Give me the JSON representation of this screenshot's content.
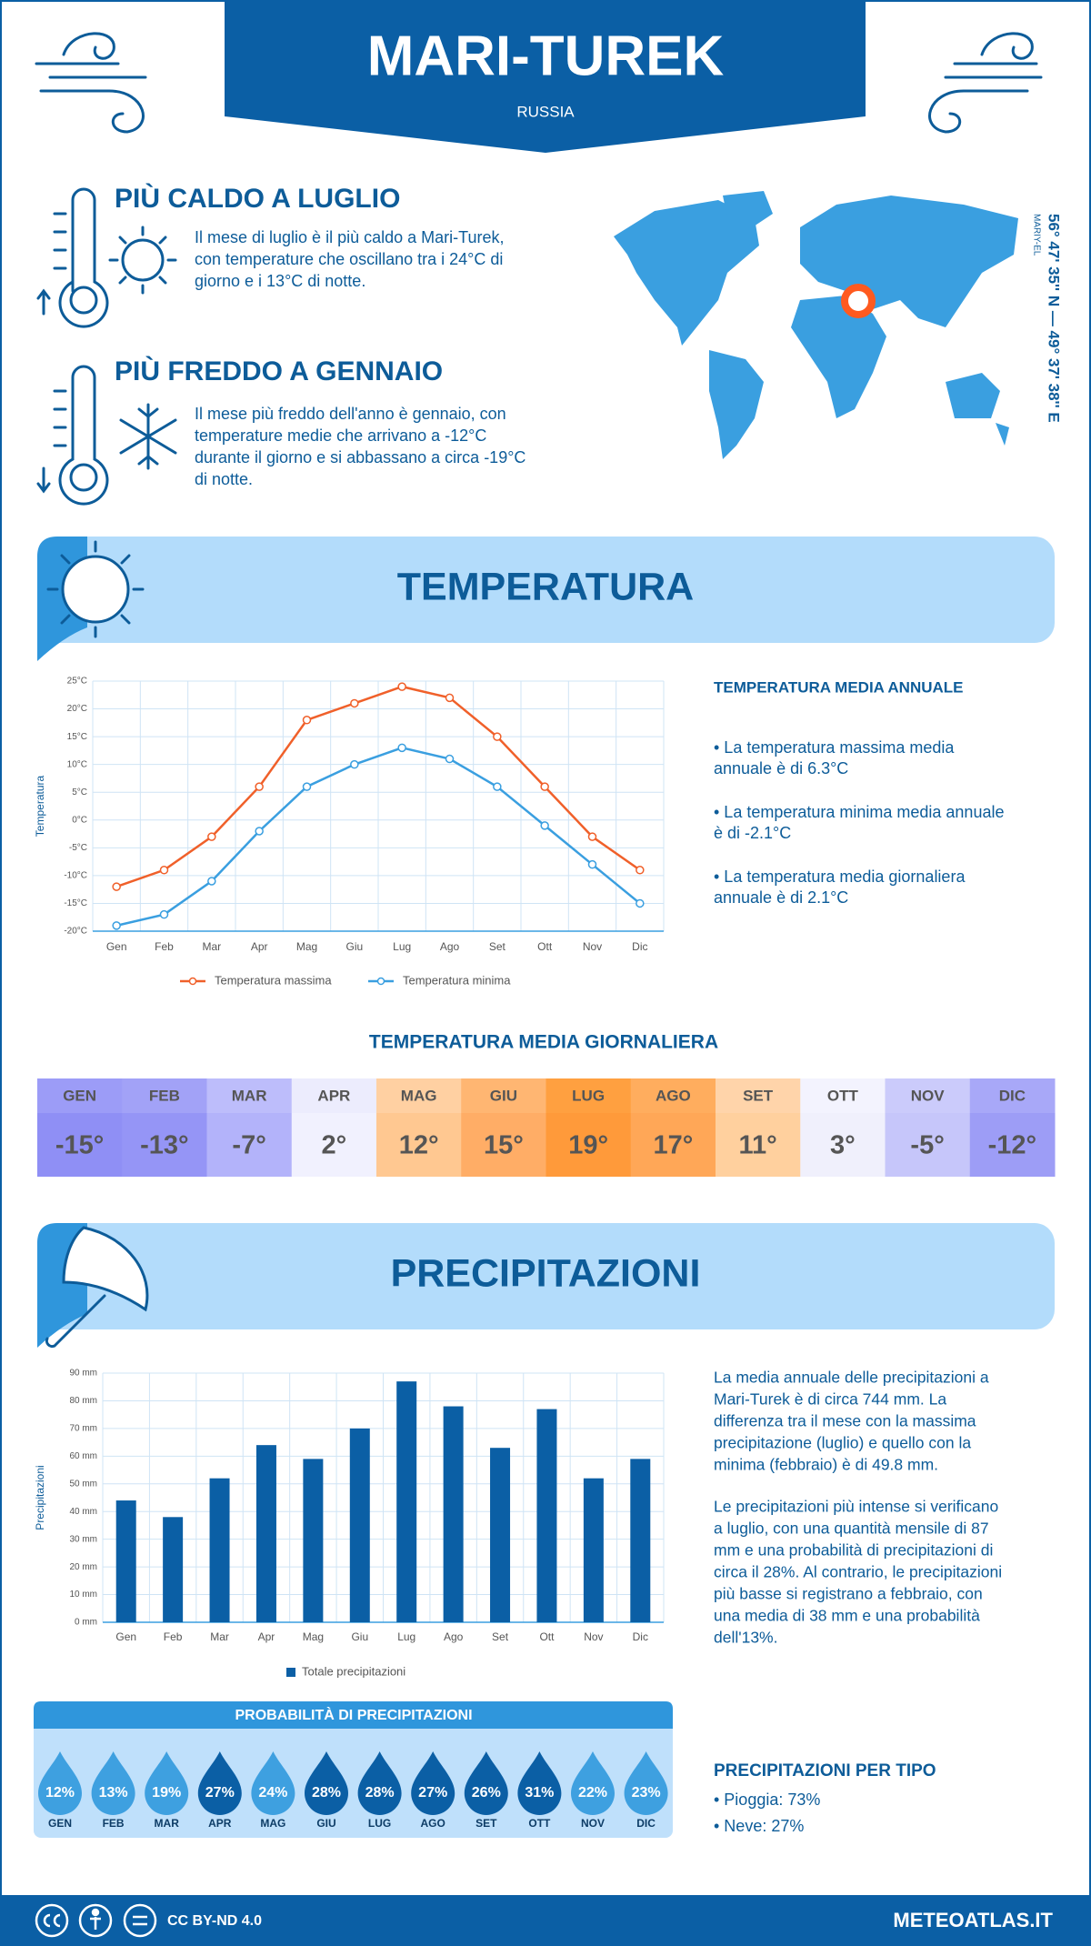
{
  "header": {
    "title": "MARI-TUREK",
    "country": "RUSSIA"
  },
  "facts": [
    {
      "title": "PIÙ CALDO A LUGLIO",
      "lines": [
        "Il mese di luglio è il più caldo a Mari-Turek,",
        "con temperature che oscillano tra i 24°C di",
        "giorno e i 13°C di notte."
      ]
    },
    {
      "title": "PIÙ FREDDO A GENNAIO",
      "lines": [
        "Il mese più freddo dell'anno è gennaio, con",
        "temperature medie che arrivano a -12°C",
        "durante il giorno e si abbassano a circa -19°C",
        "di notte."
      ]
    }
  ],
  "map": {
    "region": "MARIY-EL",
    "coordinates": "56° 47' 35'' N — 49° 37' 38'' E"
  },
  "temperature": {
    "heading": "TEMPERATURA",
    "chart": {
      "type": "line",
      "y_label": "Temperatura",
      "categories": [
        "Gen",
        "Feb",
        "Mar",
        "Apr",
        "Mag",
        "Giu",
        "Lug",
        "Ago",
        "Set",
        "Ott",
        "Nov",
        "Dic"
      ],
      "series": [
        {
          "name": "Temperatura massima",
          "color": "#f0602a",
          "values": [
            -12,
            -9,
            -3,
            6,
            18,
            21,
            24,
            22,
            15,
            6,
            -3,
            -9
          ]
        },
        {
          "name": "Temperatura minima",
          "color": "#3a9fe0",
          "values": [
            -19,
            -17,
            -11,
            -2,
            6,
            10,
            13,
            11,
            6,
            -1,
            -8,
            -15
          ]
        }
      ],
      "ylim": [
        -20,
        25
      ],
      "yticks": [
        {
          "value": -20,
          "label": "-20°C"
        },
        {
          "value": -15,
          "label": "-15°C"
        },
        {
          "value": -10,
          "label": "-10°C"
        },
        {
          "value": -5,
          "label": "-5°C"
        },
        {
          "value": 0,
          "label": "0°C"
        },
        {
          "value": 5,
          "label": "5°C"
        },
        {
          "value": 10,
          "label": "10°C"
        },
        {
          "value": 15,
          "label": "15°C"
        },
        {
          "value": 20,
          "label": "20°C"
        },
        {
          "value": 25,
          "label": "25°C"
        }
      ],
      "grid": true
    },
    "summary": {
      "title": "TEMPERATURA MEDIA ANNUALE",
      "bullets": [
        [
          "• La temperatura massima media",
          "annuale è di 6.3°C"
        ],
        [
          "• La temperatura minima media annuale",
          "è di -2.1°C"
        ],
        [
          "• La temperatura media giornaliera",
          "annuale è di 2.1°C"
        ]
      ]
    }
  },
  "daily": {
    "title": "TEMPERATURA MEDIA GIORNALIERA",
    "months": [
      "GEN",
      "FEB",
      "MAR",
      "APR",
      "MAG",
      "GIU",
      "LUG",
      "AGO",
      "SET",
      "OTT",
      "NOV",
      "DIC"
    ],
    "values": [
      -15,
      -13,
      -7,
      2,
      12,
      15,
      19,
      17,
      11,
      3,
      -5,
      -12
    ],
    "value_labels": [
      "-15°",
      "-13°",
      "-7°",
      "2°",
      "12°",
      "15°",
      "19°",
      "17°",
      "11°",
      "3°",
      "-5°",
      "-12°"
    ],
    "header_colors": [
      "#9c9cf7",
      "#a2a2f7",
      "#bdbdfb",
      "#ececfd",
      "#ffd0a2",
      "#ffb672",
      "#ffa040",
      "#ffad5e",
      "#ffd4aa",
      "#f3f3fe",
      "#cbcbfb",
      "#a8a8f8"
    ],
    "colors": [
      "#8f8ff5",
      "#9595f6",
      "#b3b3fa",
      "#f1f1fe",
      "#ffc891",
      "#ffad66",
      "#ff9a3a",
      "#ffa757",
      "#ffd09e",
      "#f0f0fc",
      "#c6c6fa",
      "#9d9df6"
    ]
  },
  "precipitation": {
    "heading": "PRECIPITAZIONI",
    "chart": {
      "type": "bar",
      "y_label": "Precipitazioni",
      "categories": [
        "Gen",
        "Feb",
        "Mar",
        "Apr",
        "Mag",
        "Giu",
        "Lug",
        "Ago",
        "Set",
        "Ott",
        "Nov",
        "Dic"
      ],
      "series": [
        {
          "name": "Totale precipitazioni",
          "color": "#0b5fa5",
          "values": [
            44,
            38,
            52,
            64,
            59,
            70,
            87,
            78,
            63,
            77,
            52,
            59
          ]
        }
      ],
      "ylim": [
        0,
        90
      ],
      "yticks": [
        {
          "value": 0,
          "label": "0 mm"
        },
        {
          "value": 10,
          "label": "10 mm"
        },
        {
          "value": 20,
          "label": "20 mm"
        },
        {
          "value": 30,
          "label": "30 mm"
        },
        {
          "value": 40,
          "label": "40 mm"
        },
        {
          "value": 50,
          "label": "50 mm"
        },
        {
          "value": 60,
          "label": "60 mm"
        },
        {
          "value": 70,
          "label": "70 mm"
        },
        {
          "value": 80,
          "label": "80 mm"
        },
        {
          "value": 90,
          "label": "90 mm"
        }
      ],
      "grid": true
    },
    "paragraphs": [
      [
        "La media annuale delle precipitazioni a",
        "Mari-Turek è di circa 744 mm. La",
        "differenza tra il mese con la massima",
        "precipitazione (luglio) e quello con la",
        "minima (febbraio) è di 49.8 mm."
      ],
      [
        "Le precipitazioni più intense si verificano",
        "a luglio, con una quantità mensile di 87",
        "mm e una probabilità di precipitazioni di",
        "circa il 28%. Al contrario, le precipitazioni",
        "più basse si registrano a febbraio, con",
        "una media di 38 mm e una probabilità",
        "dell'13%."
      ]
    ],
    "probability": {
      "title": "PROBABILITÀ DI PRECIPITAZIONI",
      "months": [
        "GEN",
        "FEB",
        "MAR",
        "APR",
        "MAG",
        "GIU",
        "LUG",
        "AGO",
        "SET",
        "OTT",
        "NOV",
        "DIC"
      ],
      "values": [
        12,
        13,
        19,
        27,
        24,
        28,
        28,
        27,
        26,
        31,
        22,
        23
      ],
      "value_labels": [
        "12%",
        "13%",
        "19%",
        "27%",
        "24%",
        "28%",
        "28%",
        "27%",
        "26%",
        "31%",
        "22%",
        "23%"
      ],
      "colors": [
        "#3ea0e0",
        "#3ea0e0",
        "#3ea0e0",
        "#0b5fa5",
        "#3ea0e0",
        "#0b5fa5",
        "#0b5fa5",
        "#0b5fa5",
        "#0b5fa5",
        "#0b5fa5",
        "#3ea0e0",
        "#3ea0e0"
      ]
    },
    "types": {
      "title": "PRECIPITAZIONI PER TIPO",
      "items": [
        "• Pioggia: 73%",
        "• Neve: 27%"
      ]
    }
  },
  "footer": {
    "license": "CC BY-ND 4.0",
    "site": "METEOATLAS.IT"
  }
}
